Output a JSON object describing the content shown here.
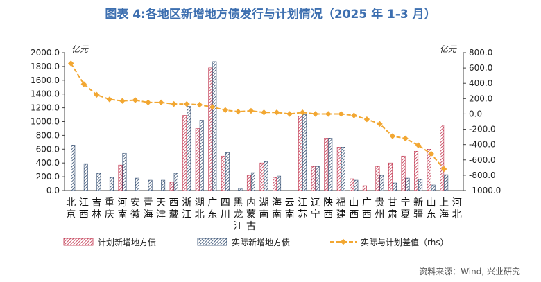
{
  "title": "图表 4:各地区新增地方债发行与计划情况（2025 年 1-3 月）",
  "source": "资料来源：Wind, 兴业研究",
  "units": {
    "left": "亿元",
    "right": "亿元"
  },
  "chart_data": {
    "type": "bar",
    "categories": [
      "北京",
      "江西",
      "吉林",
      "重庆",
      "河南",
      "安徽",
      "青海",
      "天津",
      "西藏",
      "浙江",
      "湖北",
      "广东",
      "四川",
      "黑龙江",
      "内蒙古",
      "湖南",
      "海南",
      "云南",
      "江苏",
      "辽宁",
      "陕西",
      "福建",
      "山西",
      "广西",
      "贵州",
      "甘肃",
      "宁夏",
      "新疆",
      "山东",
      "上海",
      "河北"
    ],
    "category_labels": [
      "北京",
      "江西",
      "吉林",
      "重庆",
      "河南",
      "安徽",
      "青海",
      "天津",
      "西藏",
      "浙江",
      "湖北",
      "广东",
      "四川",
      "黑龙江",
      "内蒙古",
      "湖南",
      "海南",
      "云南",
      "江苏",
      "辽宁",
      "陕西",
      "福建",
      "山西",
      "广西",
      "贵州",
      "甘肃",
      "宁夏",
      "新疆",
      "山东",
      "上海",
      "河北"
    ],
    "series": [
      {
        "name": "计划新增地方债",
        "axis": "left",
        "kind": "bar",
        "values": [
          0,
          0,
          0,
          0,
          370,
          0,
          0,
          0,
          120,
          1090,
          900,
          1780,
          500,
          0,
          220,
          400,
          190,
          0,
          1080,
          350,
          760,
          630,
          170,
          70,
          350,
          400,
          500,
          570,
          600,
          950,
          0
        ]
      },
      {
        "name": "实际新增地方债",
        "axis": "left",
        "kind": "bar",
        "values": [
          660,
          390,
          250,
          190,
          540,
          180,
          150,
          150,
          250,
          1220,
          1020,
          1870,
          550,
          30,
          260,
          420,
          210,
          0,
          1100,
          350,
          760,
          630,
          150,
          0,
          220,
          110,
          180,
          160,
          80,
          230,
          0
        ]
      },
      {
        "name": "实际与计划差值（rhs）",
        "axis": "right",
        "kind": "line",
        "values": [
          660,
          390,
          250,
          190,
          170,
          180,
          150,
          150,
          130,
          130,
          120,
          90,
          50,
          30,
          40,
          20,
          20,
          0,
          20,
          0,
          0,
          0,
          -20,
          -70,
          -130,
          -290,
          -320,
          -410,
          -520,
          -720,
          0
        ]
      }
    ],
    "line_points": 30,
    "ylim_left": [
      0,
      2000
    ],
    "ylim_right": [
      -1000,
      800
    ],
    "yticks_left": [
      "0.0",
      "200.0",
      "400.0",
      "600.0",
      "800.0",
      "1000.0",
      "1200.0",
      "1400.0",
      "1600.0",
      "1800.0",
      "2000.0"
    ],
    "yticks_right": [
      "-1000.0",
      "-800.0",
      "-600.0",
      "-400.0",
      "-200.0",
      "0.0",
      "200.0",
      "400.0",
      "600.0",
      "800.0"
    ],
    "legend": [
      "计划新增地方债",
      "实际新增地方债",
      "实际与计划差值（rhs）"
    ],
    "legend_position": "bottom",
    "grid": false,
    "colors": {
      "planned": "#c0304a",
      "actual": "#2f4a6e",
      "line": "#f2a732"
    }
  }
}
